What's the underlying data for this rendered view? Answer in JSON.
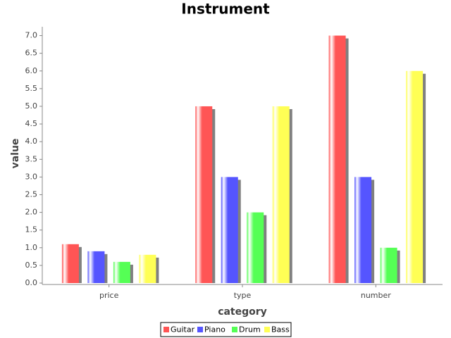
{
  "chart_data": {
    "type": "bar",
    "title": "Instrument",
    "x_label": "category",
    "y_label": "value",
    "categories": [
      "price",
      "type",
      "number"
    ],
    "series": [
      {
        "name": "Guitar",
        "color": "#ff5555",
        "values": [
          1.1,
          5,
          7
        ]
      },
      {
        "name": "Piano",
        "color": "#5555ff",
        "values": [
          0.9,
          3,
          3
        ]
      },
      {
        "name": "Drum",
        "color": "#55ff55",
        "values": [
          0.6,
          2,
          1
        ]
      },
      {
        "name": "Bass",
        "color": "#ffff55",
        "values": [
          0.8,
          5,
          6
        ]
      }
    ],
    "ylim": [
      0,
      7.25
    ],
    "yticks": [
      {
        "value": 0,
        "label": "0.0"
      },
      0.5,
      {
        "value": 1,
        "label": "1.0"
      },
      1.5,
      {
        "value": 2,
        "label": "2.0"
      },
      2.5,
      {
        "value": 3,
        "label": "3.0"
      },
      3.5,
      {
        "value": 4,
        "label": "4.0"
      },
      4.5,
      {
        "value": 5,
        "label": "5.0"
      },
      5.5,
      {
        "value": 6,
        "label": "6.0"
      },
      6.5,
      {
        "value": 7,
        "label": "7.0"
      }
    ],
    "legend": "bottom",
    "grid": false
  }
}
